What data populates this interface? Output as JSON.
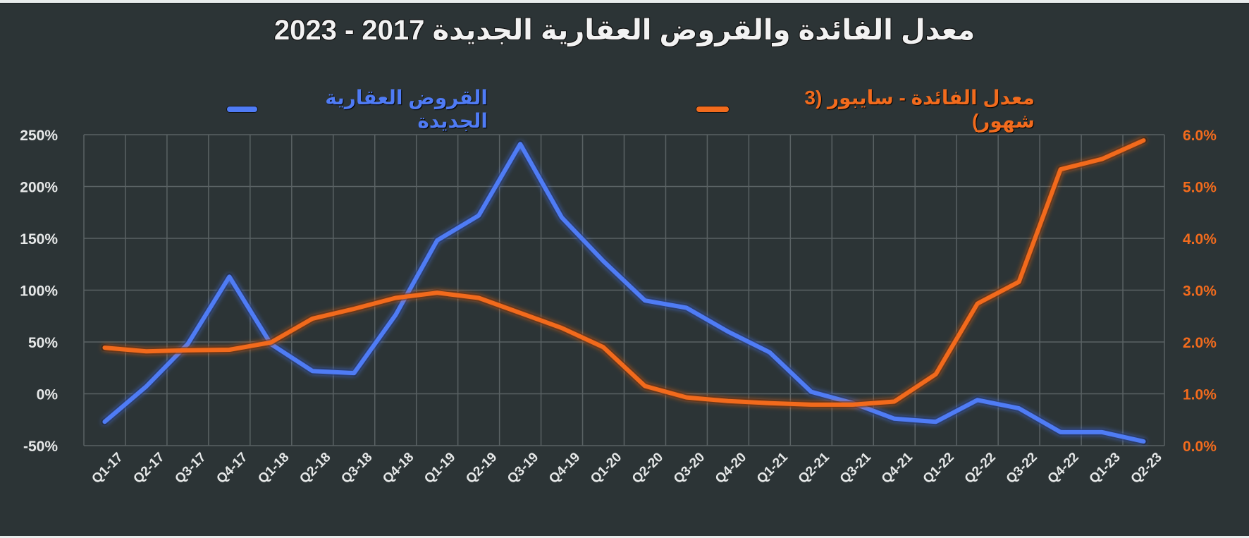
{
  "chart_data": {
    "type": "line",
    "title": "معدل الفائدة والقروض العقارية الجديدة 2017 - 2023",
    "xlabel": "",
    "ylabel_left": "",
    "ylabel_right": "",
    "categories": [
      "Q1-17",
      "Q2-17",
      "Q3-17",
      "Q4-17",
      "Q1-18",
      "Q2-18",
      "Q3-18",
      "Q4-18",
      "Q1-19",
      "Q2-19",
      "Q3-19",
      "Q4-19",
      "Q1-20",
      "Q2-20",
      "Q3-20",
      "Q4-20",
      "Q1-21",
      "Q2-21",
      "Q3-21",
      "Q4-21",
      "Q1-22",
      "Q2-22",
      "Q3-22",
      "Q4-22",
      "Q1-23",
      "Q2-23"
    ],
    "series": [
      {
        "name": "القروض العقارية الجديدة",
        "axis": "left",
        "color": "#4f7bf5",
        "unit": "%",
        "values": [
          -27,
          7,
          48,
          113,
          48,
          22,
          20,
          76,
          148,
          172,
          241,
          170,
          128,
          90,
          83,
          60,
          40,
          2,
          -9,
          -24,
          -27,
          -6,
          -14,
          -37,
          -37,
          -46
        ]
      },
      {
        "name": "معدل الفائدة - سايبور (3 شهور)",
        "axis": "right",
        "color": "#f26b1d",
        "unit": "%",
        "values": [
          1.89,
          1.82,
          1.84,
          1.85,
          1.99,
          2.45,
          2.64,
          2.85,
          2.95,
          2.85,
          2.56,
          2.27,
          1.9,
          1.15,
          0.93,
          0.86,
          0.82,
          0.79,
          0.79,
          0.85,
          1.38,
          2.74,
          3.16,
          5.33,
          5.53,
          5.89
        ]
      }
    ],
    "y_left": {
      "min": -50,
      "max": 250,
      "step": 50,
      "tick_labels": [
        "-50%",
        "0%",
        "50%",
        "100%",
        "150%",
        "200%",
        "250%"
      ],
      "color": "#e6e8e8"
    },
    "y_right": {
      "min": 0,
      "max": 6,
      "step": 1,
      "tick_labels": [
        "0.0%",
        "1.0%",
        "2.0%",
        "3.0%",
        "4.0%",
        "5.0%",
        "6.0%"
      ],
      "color": "#f26b1d"
    },
    "grid": true,
    "legend_position": "top"
  },
  "header": {
    "title": "معدل الفائدة والقروض العقارية الجديدة 2017 - 2023"
  },
  "legend": {
    "orange_label": "معدل الفائدة - سايبور (3 شهور)",
    "blue_label": "القروض العقارية الجديدة"
  },
  "colors": {
    "background": "#2c3436",
    "grid": "#5a6264",
    "blue": "#4f7bf5",
    "orange": "#f26b1d",
    "text": "#e6e8e8"
  }
}
